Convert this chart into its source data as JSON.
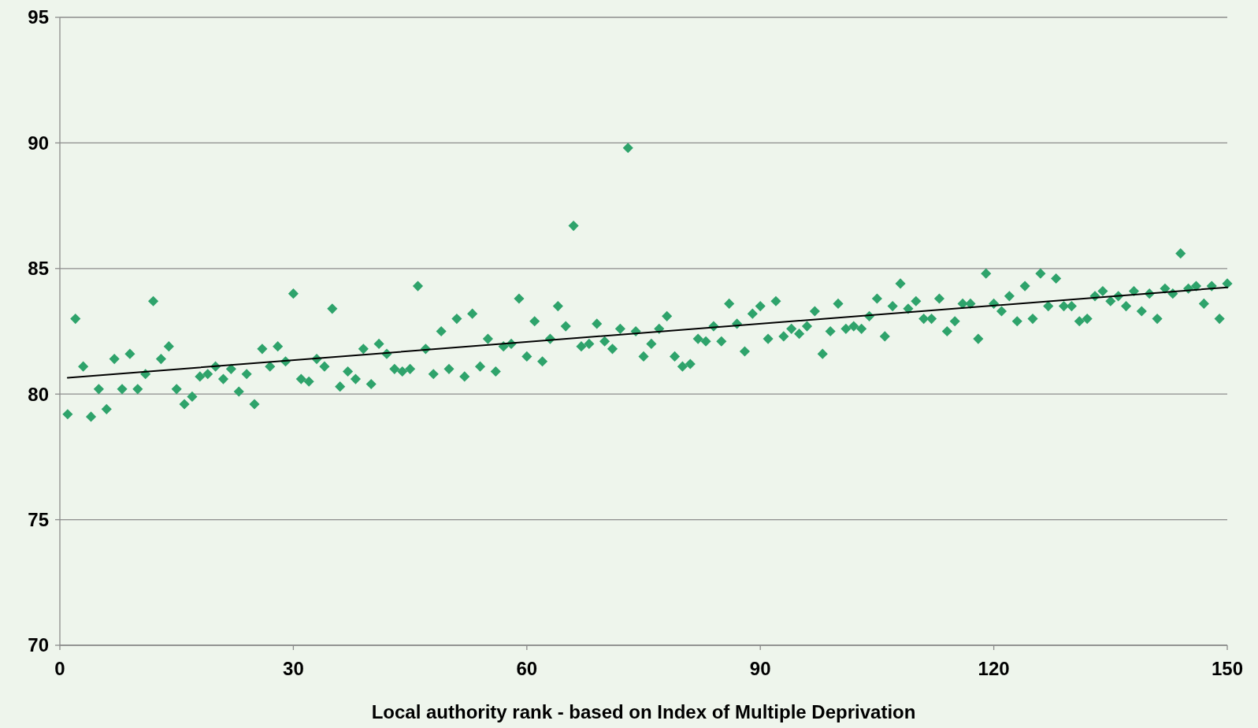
{
  "chart_data": {
    "type": "scatter",
    "xlabel": "Local authority rank - based on Index of Multiple Deprivation",
    "xlim": [
      0,
      150
    ],
    "xticks": [
      0,
      30,
      60,
      90,
      120,
      150
    ],
    "ylim": [
      70,
      95
    ],
    "yticks": [
      70,
      75,
      80,
      85,
      90,
      95
    ],
    "grid": "y",
    "series": [
      {
        "color": "#2ea36b",
        "marker": "diamond",
        "x": [
          1,
          2,
          3,
          4,
          5,
          6,
          7,
          8,
          9,
          10,
          11,
          12,
          13,
          14,
          15,
          16,
          17,
          18,
          19,
          20,
          21,
          22,
          23,
          24,
          25,
          26,
          27,
          28,
          29,
          30,
          31,
          32,
          33,
          34,
          35,
          36,
          37,
          38,
          39,
          40,
          41,
          42,
          43,
          44,
          45,
          46,
          47,
          48,
          49,
          50,
          51,
          52,
          53,
          54,
          55,
          56,
          57,
          58,
          59,
          60,
          61,
          62,
          63,
          64,
          65,
          66,
          67,
          68,
          69,
          70,
          71,
          72,
          73,
          74,
          75,
          76,
          77,
          78,
          79,
          80,
          81,
          82,
          83,
          84,
          85,
          86,
          87,
          88,
          89,
          90,
          91,
          92,
          93,
          94,
          95,
          96,
          97,
          98,
          99,
          100,
          101,
          102,
          103,
          104,
          105,
          106,
          107,
          108,
          109,
          110,
          111,
          112,
          113,
          114,
          115,
          116,
          117,
          118,
          119,
          120,
          121,
          122,
          123,
          124,
          125,
          126,
          127,
          128,
          129,
          130,
          131,
          132,
          133,
          134,
          135,
          136,
          137,
          138,
          139,
          140,
          141,
          142,
          143,
          144,
          145,
          146,
          147,
          148,
          149,
          150
        ],
        "values": [
          79.2,
          83.0,
          81.1,
          79.1,
          80.2,
          79.4,
          81.4,
          80.2,
          81.6,
          80.2,
          80.8,
          83.7,
          81.4,
          81.9,
          80.2,
          79.6,
          79.9,
          80.7,
          80.8,
          81.1,
          80.6,
          81.0,
          80.1,
          80.8,
          79.6,
          81.8,
          81.1,
          81.9,
          81.3,
          84.0,
          80.6,
          80.5,
          81.4,
          81.1,
          83.4,
          80.3,
          80.9,
          80.6,
          81.8,
          80.4,
          82.0,
          81.6,
          81.0,
          80.9,
          81.0,
          84.3,
          81.8,
          80.8,
          82.5,
          81.0,
          83.0,
          80.7,
          83.2,
          81.1,
          82.2,
          80.9,
          81.9,
          82.0,
          83.8,
          81.5,
          82.9,
          81.3,
          82.2,
          83.5,
          82.7,
          86.7,
          81.9,
          82.0,
          82.8,
          82.1,
          81.8,
          82.6,
          89.8,
          82.5,
          81.5,
          82.0,
          82.6,
          83.1,
          81.5,
          81.1,
          81.2,
          82.2,
          82.1,
          82.7,
          82.1,
          83.6,
          82.8,
          81.7,
          83.2,
          83.5,
          82.2,
          83.7,
          82.3,
          82.6,
          82.4,
          82.7,
          83.3,
          81.6,
          82.5,
          83.6,
          82.6,
          82.7,
          82.6,
          83.1,
          83.8,
          82.3,
          83.5,
          84.4,
          83.4,
          83.7,
          83.0,
          83.0,
          83.8,
          82.5,
          82.9,
          83.6,
          83.6,
          82.2,
          84.8,
          83.6,
          83.3,
          83.9,
          82.9,
          84.3,
          83.0,
          84.8,
          83.5,
          84.6,
          83.5,
          83.5,
          82.9,
          83.0,
          83.9,
          84.1,
          83.7,
          83.9,
          83.5,
          84.1,
          83.3,
          84.0,
          83.0,
          84.2,
          84.0,
          85.6,
          84.2,
          84.3,
          83.6,
          84.3,
          83.0,
          84.4
        ]
      },
      {
        "type": "line",
        "color": "#000000",
        "x": [
          1,
          150
        ],
        "values": [
          80.65,
          84.25
        ]
      }
    ]
  }
}
